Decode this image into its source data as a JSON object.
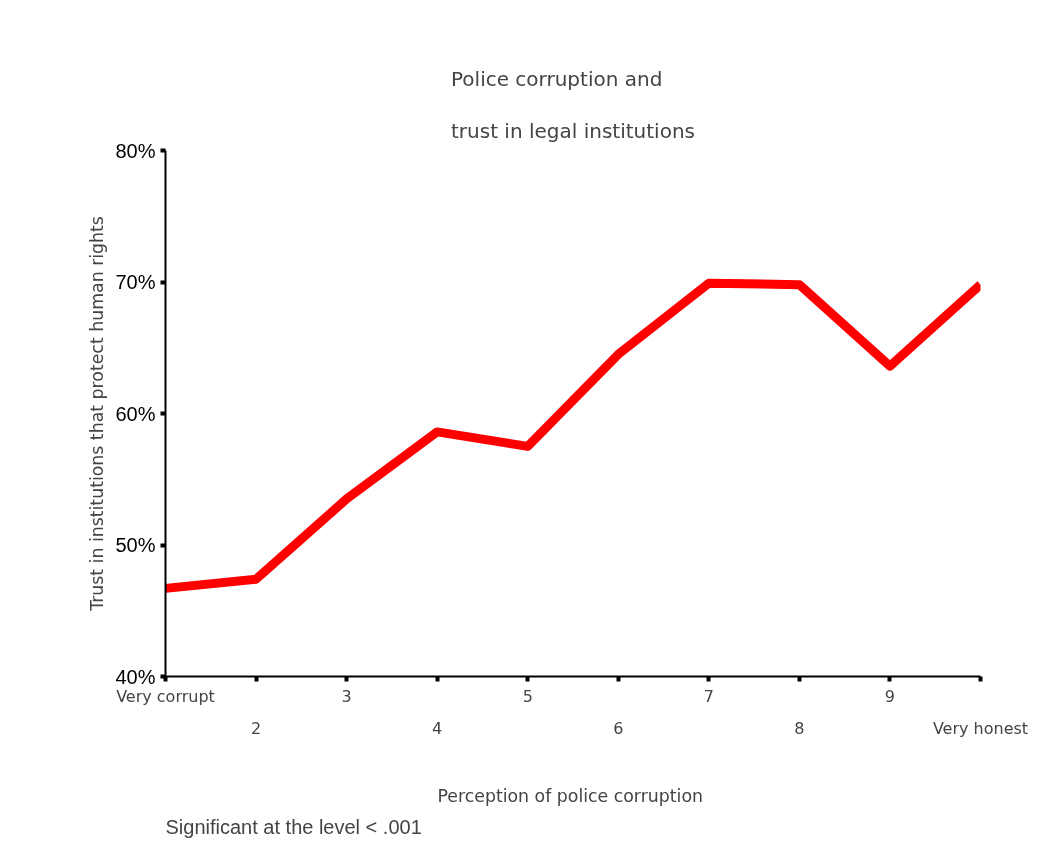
{
  "chart_data": {
    "type": "line",
    "title": "Police corruption and\ntrust in legal institutions",
    "xlabel": "Perception of  police corruption",
    "ylabel": "Trust in institutions that protect human rights",
    "categories": [
      "Very corrupt",
      "2",
      "3",
      "4",
      "5",
      "6",
      "7",
      "8",
      "9",
      "Very honest"
    ],
    "series": [
      {
        "color": "#ff0000",
        "values": [
          46.7,
          47.4,
          53.5,
          58.6,
          57.5,
          64.5,
          69.9,
          69.8,
          63.6,
          69.8
        ]
      }
    ],
    "ylim": [
      40,
      80
    ],
    "yticks": [
      {
        "value": 40,
        "label": "40%"
      },
      {
        "value": 50,
        "label": "50%"
      },
      {
        "value": 60,
        "label": "60%"
      },
      {
        "value": 70,
        "label": "70%"
      },
      {
        "value": 80,
        "label": "80%"
      }
    ],
    "grid": false,
    "marker": "none",
    "line_style": "solid",
    "annotations": [
      "Significant at the level < .001"
    ]
  }
}
